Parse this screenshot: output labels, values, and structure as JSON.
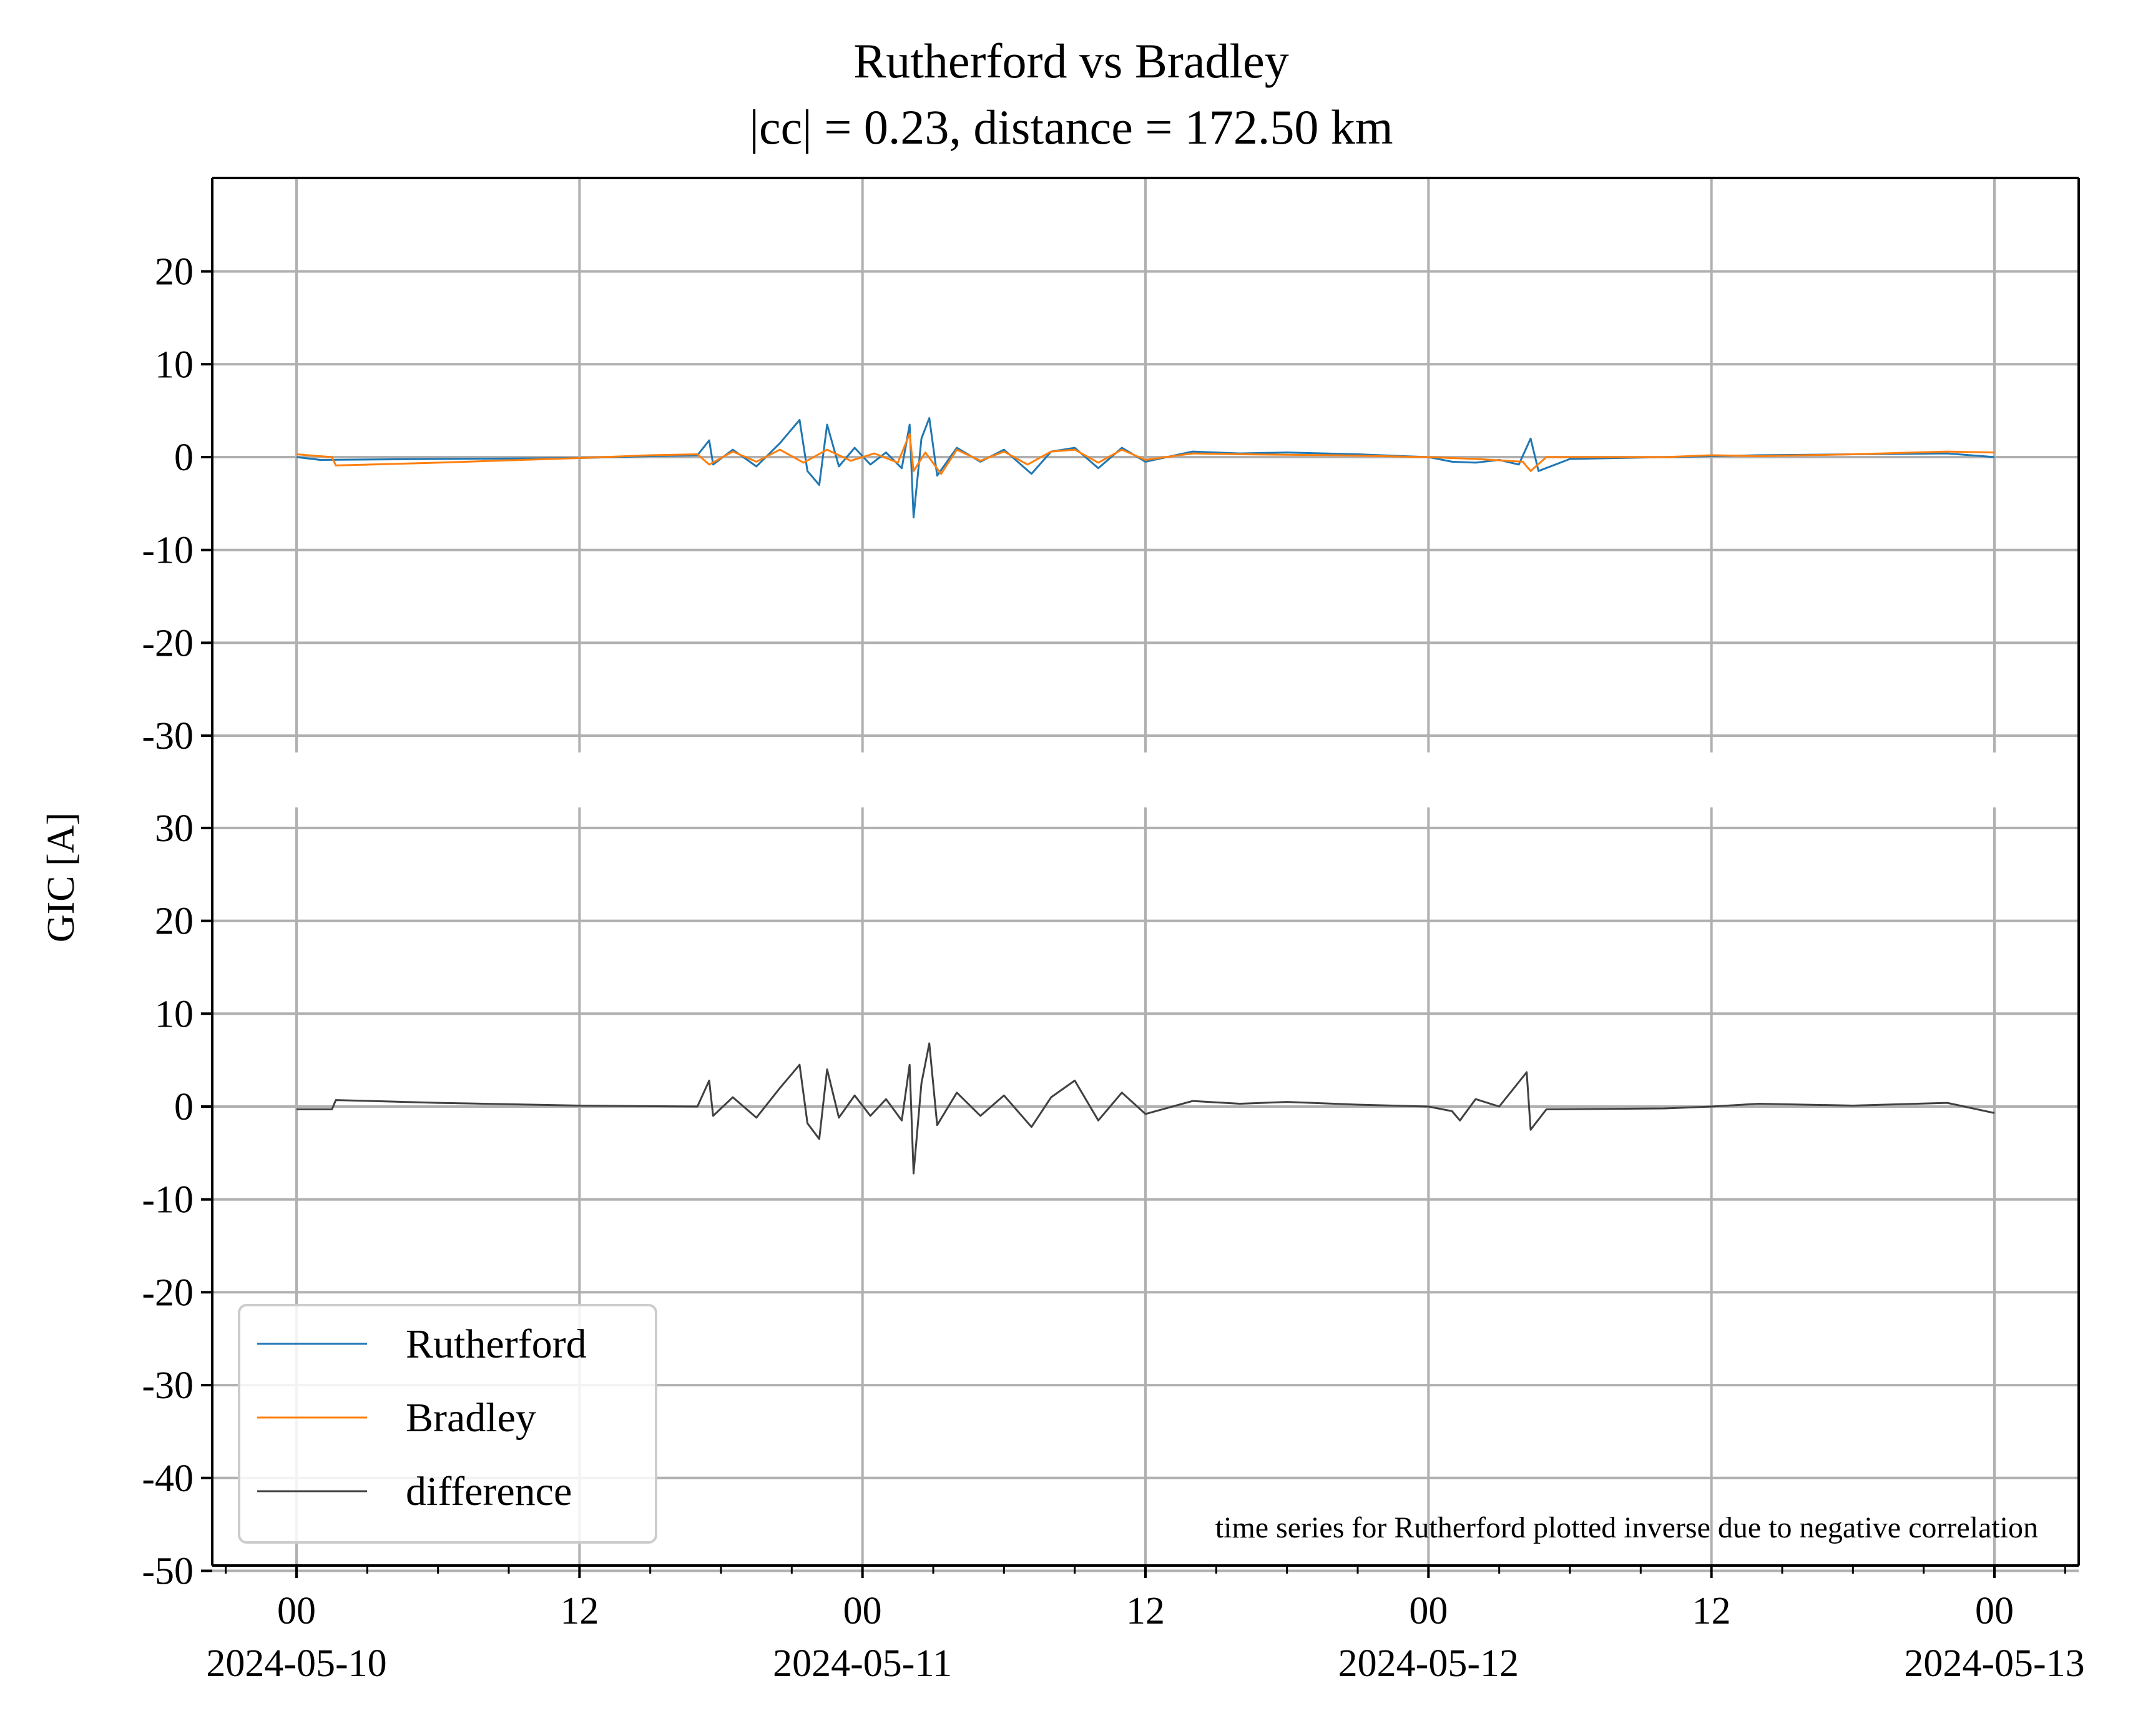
{
  "chart_data": {
    "type": "line",
    "title": "Rutherford vs Bradley",
    "subtitle": "|cc| = 0.23, distance = 172.50 km",
    "ylabel": "GIC [A]",
    "annotation": "time series for Rutherford plotted inverse due to negative correlation",
    "x_range": [
      "2024-05-10 00:00",
      "2024-05-13 00:00"
    ],
    "x_ticks": [
      {
        "hour": "00",
        "date": "2024-05-10"
      },
      {
        "hour": "12",
        "date": ""
      },
      {
        "hour": "00",
        "date": "2024-05-11"
      },
      {
        "hour": "12",
        "date": ""
      },
      {
        "hour": "00",
        "date": "2024-05-12"
      },
      {
        "hour": "12",
        "date": ""
      },
      {
        "hour": "00",
        "date": "2024-05-13"
      }
    ],
    "panels": [
      {
        "ylim": [
          -30,
          30
        ],
        "y_ticks": [
          "20",
          "10",
          "0",
          "-10",
          "-20",
          "-30"
        ],
        "grid": true,
        "series": [
          {
            "name": "Rutherford",
            "color": "#1f77b4",
            "points": [
              [
                "2024-05-10 00:00",
                0.0
              ],
              [
                "2024-05-10 01:00",
                -0.3
              ],
              [
                "2024-05-10 06:00",
                -0.2
              ],
              [
                "2024-05-10 12:00",
                -0.1
              ],
              [
                "2024-05-10 15:00",
                0.1
              ],
              [
                "2024-05-10 17:00",
                0.2
              ],
              [
                "2024-05-10 17:30",
                1.8
              ],
              [
                "2024-05-10 17:40",
                -0.8
              ],
              [
                "2024-05-10 18:30",
                0.8
              ],
              [
                "2024-05-10 19:30",
                -1.0
              ],
              [
                "2024-05-10 20:30",
                1.5
              ],
              [
                "2024-05-10 21:20",
                4.0
              ],
              [
                "2024-05-10 21:40",
                -1.5
              ],
              [
                "2024-05-10 22:10",
                -3.0
              ],
              [
                "2024-05-10 22:30",
                3.5
              ],
              [
                "2024-05-10 23:00",
                -1.0
              ],
              [
                "2024-05-10 23:40",
                1.0
              ],
              [
                "2024-05-11 00:20",
                -0.8
              ],
              [
                "2024-05-11 01:00",
                0.5
              ],
              [
                "2024-05-11 01:40",
                -1.2
              ],
              [
                "2024-05-11 02:00",
                3.5
              ],
              [
                "2024-05-11 02:10",
                -6.5
              ],
              [
                "2024-05-11 02:30",
                2.0
              ],
              [
                "2024-05-11 02:50",
                4.2
              ],
              [
                "2024-05-11 03:10",
                -2.0
              ],
              [
                "2024-05-11 04:00",
                1.0
              ],
              [
                "2024-05-11 05:00",
                -0.5
              ],
              [
                "2024-05-11 06:00",
                0.8
              ],
              [
                "2024-05-11 07:10",
                -1.8
              ],
              [
                "2024-05-11 08:00",
                0.6
              ],
              [
                "2024-05-11 09:00",
                1.0
              ],
              [
                "2024-05-11 10:00",
                -1.2
              ],
              [
                "2024-05-11 11:00",
                1.0
              ],
              [
                "2024-05-11 12:00",
                -0.5
              ],
              [
                "2024-05-11 14:00",
                0.6
              ],
              [
                "2024-05-11 16:00",
                0.4
              ],
              [
                "2024-05-11 18:00",
                0.5
              ],
              [
                "2024-05-11 21:00",
                0.3
              ],
              [
                "2024-05-12 00:00",
                0.0
              ],
              [
                "2024-05-12 01:00",
                -0.5
              ],
              [
                "2024-05-12 02:00",
                -0.6
              ],
              [
                "2024-05-12 03:00",
                -0.3
              ],
              [
                "2024-05-12 03:50",
                -0.8
              ],
              [
                "2024-05-12 04:20",
                2.0
              ],
              [
                "2024-05-12 04:40",
                -1.5
              ],
              [
                "2024-05-12 06:00",
                -0.2
              ],
              [
                "2024-05-12 10:00",
                0.0
              ],
              [
                "2024-05-12 14:00",
                0.2
              ],
              [
                "2024-05-12 18:00",
                0.3
              ],
              [
                "2024-05-12 22:00",
                0.4
              ],
              [
                "2024-05-13 00:00",
                0.0
              ]
            ]
          },
          {
            "name": "Bradley",
            "color": "#ff7f0e",
            "points": [
              [
                "2024-05-10 00:00",
                0.3
              ],
              [
                "2024-05-10 01:30",
                0.0
              ],
              [
                "2024-05-10 01:40",
                -0.9
              ],
              [
                "2024-05-10 06:00",
                -0.6
              ],
              [
                "2024-05-10 12:00",
                -0.1
              ],
              [
                "2024-05-10 15:00",
                0.2
              ],
              [
                "2024-05-10 17:00",
                0.3
              ],
              [
                "2024-05-10 17:30",
                -0.8
              ],
              [
                "2024-05-10 18:30",
                0.6
              ],
              [
                "2024-05-10 19:30",
                -0.5
              ],
              [
                "2024-05-10 20:30",
                0.8
              ],
              [
                "2024-05-10 21:30",
                -0.6
              ],
              [
                "2024-05-10 22:30",
                0.8
              ],
              [
                "2024-05-10 23:30",
                -0.4
              ],
              [
                "2024-05-11 00:30",
                0.4
              ],
              [
                "2024-05-11 01:30",
                -0.6
              ],
              [
                "2024-05-11 02:00",
                2.5
              ],
              [
                "2024-05-11 02:10",
                -1.5
              ],
              [
                "2024-05-11 02:40",
                0.5
              ],
              [
                "2024-05-11 03:20",
                -1.8
              ],
              [
                "2024-05-11 04:00",
                0.8
              ],
              [
                "2024-05-11 05:00",
                -0.4
              ],
              [
                "2024-05-11 06:00",
                0.6
              ],
              [
                "2024-05-11 07:00",
                -0.8
              ],
              [
                "2024-05-11 08:00",
                0.6
              ],
              [
                "2024-05-11 09:00",
                0.8
              ],
              [
                "2024-05-11 10:00",
                -0.6
              ],
              [
                "2024-05-11 11:00",
                0.8
              ],
              [
                "2024-05-11 12:00",
                -0.3
              ],
              [
                "2024-05-11 14:00",
                0.4
              ],
              [
                "2024-05-11 16:00",
                0.3
              ],
              [
                "2024-05-11 20:00",
                0.2
              ],
              [
                "2024-05-12 00:00",
                0.0
              ],
              [
                "2024-05-12 02:00",
                -0.2
              ],
              [
                "2024-05-12 04:00",
                -0.5
              ],
              [
                "2024-05-12 04:20",
                -1.5
              ],
              [
                "2024-05-12 05:00",
                0.0
              ],
              [
                "2024-05-12 10:00",
                0.0
              ],
              [
                "2024-05-12 12:00",
                0.2
              ],
              [
                "2024-05-12 14:00",
                0.1
              ],
              [
                "2024-05-12 18:00",
                0.3
              ],
              [
                "2024-05-12 22:00",
                0.6
              ],
              [
                "2024-05-13 00:00",
                0.5
              ]
            ]
          }
        ]
      },
      {
        "ylim": [
          -50,
          32
        ],
        "y_ticks": [
          "30",
          "20",
          "10",
          "0",
          "-10",
          "-20",
          "-30",
          "-40",
          "-50"
        ],
        "grid": true,
        "series": [
          {
            "name": "difference",
            "color": "#404040",
            "points": [
              [
                "2024-05-10 00:00",
                -0.3
              ],
              [
                "2024-05-10 01:30",
                -0.3
              ],
              [
                "2024-05-10 01:40",
                0.7
              ],
              [
                "2024-05-10 06:00",
                0.4
              ],
              [
                "2024-05-10 12:00",
                0.1
              ],
              [
                "2024-05-10 17:00",
                0.0
              ],
              [
                "2024-05-10 17:30",
                2.8
              ],
              [
                "2024-05-10 17:40",
                -1.0
              ],
              [
                "2024-05-10 18:30",
                1.0
              ],
              [
                "2024-05-10 19:30",
                -1.2
              ],
              [
                "2024-05-10 20:30",
                2.0
              ],
              [
                "2024-05-10 21:20",
                4.5
              ],
              [
                "2024-05-10 21:40",
                -1.8
              ],
              [
                "2024-05-10 22:10",
                -3.5
              ],
              [
                "2024-05-10 22:30",
                4.0
              ],
              [
                "2024-05-10 23:00",
                -1.2
              ],
              [
                "2024-05-10 23:40",
                1.2
              ],
              [
                "2024-05-11 00:20",
                -1.0
              ],
              [
                "2024-05-11 01:00",
                0.8
              ],
              [
                "2024-05-11 01:40",
                -1.5
              ],
              [
                "2024-05-11 02:00",
                4.5
              ],
              [
                "2024-05-11 02:10",
                -7.2
              ],
              [
                "2024-05-11 02:30",
                2.5
              ],
              [
                "2024-05-11 02:50",
                6.8
              ],
              [
                "2024-05-11 03:10",
                -2.0
              ],
              [
                "2024-05-11 04:00",
                1.5
              ],
              [
                "2024-05-11 05:00",
                -1.0
              ],
              [
                "2024-05-11 06:00",
                1.2
              ],
              [
                "2024-05-11 07:10",
                -2.2
              ],
              [
                "2024-05-11 08:00",
                1.0
              ],
              [
                "2024-05-11 09:00",
                2.8
              ],
              [
                "2024-05-11 10:00",
                -1.5
              ],
              [
                "2024-05-11 11:00",
                1.5
              ],
              [
                "2024-05-11 12:00",
                -0.8
              ],
              [
                "2024-05-11 14:00",
                0.6
              ],
              [
                "2024-05-11 16:00",
                0.3
              ],
              [
                "2024-05-11 18:00",
                0.5
              ],
              [
                "2024-05-11 21:00",
                0.2
              ],
              [
                "2024-05-12 00:00",
                0.0
              ],
              [
                "2024-05-12 01:00",
                -0.5
              ],
              [
                "2024-05-12 01:20",
                -1.5
              ],
              [
                "2024-05-12 02:00",
                0.8
              ],
              [
                "2024-05-12 03:00",
                0.0
              ],
              [
                "2024-05-12 04:10",
                3.7
              ],
              [
                "2024-05-12 04:20",
                -2.5
              ],
              [
                "2024-05-12 05:00",
                -0.3
              ],
              [
                "2024-05-12 10:00",
                -0.2
              ],
              [
                "2024-05-12 12:00",
                0.0
              ],
              [
                "2024-05-12 14:00",
                0.3
              ],
              [
                "2024-05-12 18:00",
                0.1
              ],
              [
                "2024-05-12 22:00",
                0.4
              ],
              [
                "2024-05-13 00:00",
                -0.7
              ]
            ]
          }
        ]
      }
    ],
    "legend": {
      "placement": "lower-left",
      "entries": [
        "Rutherford",
        "Bradley",
        "difference"
      ]
    }
  }
}
